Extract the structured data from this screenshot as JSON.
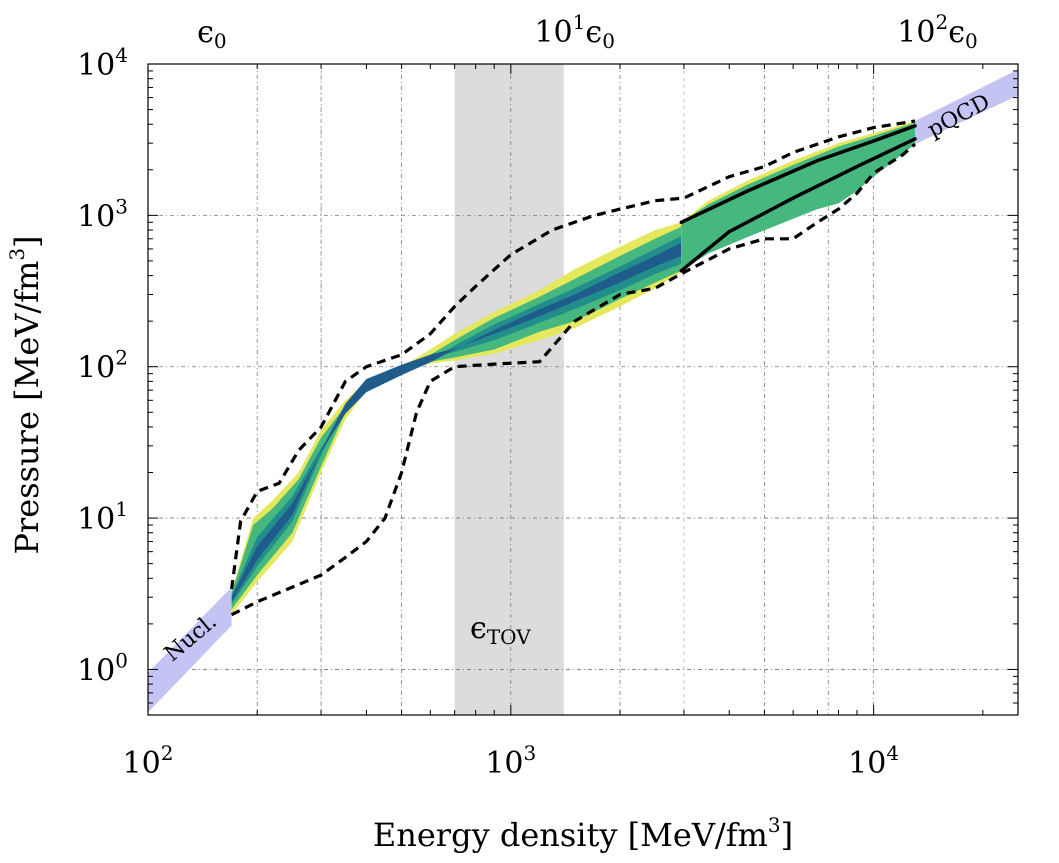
{
  "chart_data": {
    "type": "area",
    "xlabel": {
      "main": "Energy density [MeV/fm",
      "sup": "3",
      "end": "]"
    },
    "ylabel": {
      "main": "Pressure [MeV/fm",
      "sup": "3",
      "end": "]"
    },
    "x_scale": "log",
    "y_scale": "log",
    "xlim": [
      100,
      25000
    ],
    "ylim": [
      0.5,
      10000
    ],
    "grid": true,
    "x_ticks": [
      {
        "value": 100,
        "base": "10",
        "exp": "2"
      },
      {
        "value": 1000,
        "base": "10",
        "exp": "3"
      },
      {
        "value": 10000,
        "base": "10",
        "exp": "4"
      }
    ],
    "y_ticks": [
      {
        "value": 1,
        "base": "10",
        "exp": "0"
      },
      {
        "value": 10,
        "base": "10",
        "exp": "1"
      },
      {
        "value": 100,
        "base": "10",
        "exp": "2"
      },
      {
        "value": 1000,
        "base": "10",
        "exp": "3"
      },
      {
        "value": 10000,
        "base": "10",
        "exp": "4"
      }
    ],
    "top_ticks": [
      {
        "value": 150,
        "prefix": "",
        "exp": "",
        "eps": "ϵ",
        "sub": "0"
      },
      {
        "value": 1500,
        "prefix": "10",
        "exp": "1",
        "eps": "ϵ",
        "sub": "0"
      },
      {
        "value": 15000,
        "prefix": "10",
        "exp": "2",
        "eps": "ϵ",
        "sub": "0"
      }
    ],
    "tov_band": {
      "x_range": [
        700,
        1400
      ],
      "label": {
        "eps": "ϵ",
        "sub": "TOV"
      },
      "color": "#dcdcdc"
    },
    "nucl_band": {
      "label": "Nucl.",
      "color": "#c4c4f4",
      "lower": [
        [
          100,
          0.52
        ],
        [
          170,
          1.95
        ]
      ],
      "upper": [
        [
          100,
          0.95
        ],
        [
          170,
          3.5
        ]
      ]
    },
    "pqcd_band": {
      "label": "pQCD",
      "color": "#c4c4f4",
      "lower": [
        [
          2950,
          430
        ],
        [
          5000,
          1000
        ],
        [
          8000,
          1800
        ],
        [
          13000,
          2950
        ],
        [
          25000,
          6200
        ]
      ],
      "upper": [
        [
          2950,
          900
        ],
        [
          5000,
          1700
        ],
        [
          8000,
          2600
        ],
        [
          13000,
          4200
        ],
        [
          25000,
          9200
        ]
      ]
    },
    "credible_bands": [
      {
        "name": "outer",
        "color": "#e5e75c",
        "lower": [
          [
            170,
            2.3
          ],
          [
            200,
            3.8
          ],
          [
            250,
            7
          ],
          [
            300,
            20
          ],
          [
            350,
            45
          ],
          [
            400,
            70
          ],
          [
            500,
            92
          ],
          [
            600,
            105
          ],
          [
            700,
            110
          ],
          [
            900,
            122
          ],
          [
            1200,
            150
          ],
          [
            1500,
            180
          ],
          [
            2000,
            250
          ],
          [
            2500,
            330
          ],
          [
            2950,
            420
          ]
        ],
        "upper": [
          [
            170,
            3.3
          ],
          [
            195,
            10
          ],
          [
            220,
            13
          ],
          [
            260,
            20
          ],
          [
            300,
            38
          ],
          [
            350,
            60
          ],
          [
            400,
            80
          ],
          [
            500,
            100
          ],
          [
            600,
            130
          ],
          [
            700,
            165
          ],
          [
            900,
            230
          ],
          [
            1200,
            320
          ],
          [
            1500,
            440
          ],
          [
            2000,
            620
          ],
          [
            2500,
            800
          ],
          [
            2950,
            900
          ]
        ]
      },
      {
        "name": "mid",
        "color": "#46b77e",
        "lower": [
          [
            170,
            2.5
          ],
          [
            200,
            4.2
          ],
          [
            250,
            8
          ],
          [
            300,
            22
          ],
          [
            350,
            50
          ],
          [
            400,
            75
          ],
          [
            500,
            95
          ],
          [
            600,
            108
          ],
          [
            700,
            115
          ],
          [
            900,
            130
          ],
          [
            1200,
            170
          ],
          [
            1500,
            200
          ],
          [
            2000,
            280
          ],
          [
            2500,
            360
          ],
          [
            2950,
            430
          ]
        ],
        "upper": [
          [
            170,
            3.2
          ],
          [
            195,
            9
          ],
          [
            220,
            11.5
          ],
          [
            260,
            18
          ],
          [
            300,
            34
          ],
          [
            350,
            55
          ],
          [
            400,
            75
          ],
          [
            500,
            95
          ],
          [
            600,
            120
          ],
          [
            700,
            150
          ],
          [
            900,
            210
          ],
          [
            1200,
            290
          ],
          [
            1500,
            380
          ],
          [
            2000,
            540
          ],
          [
            2500,
            700
          ],
          [
            2950,
            840
          ]
        ]
      },
      {
        "name": "inner",
        "color": "#228e8c",
        "lower": [
          [
            170,
            2.7
          ],
          [
            200,
            4.8
          ],
          [
            250,
            9.5
          ],
          [
            300,
            26
          ],
          [
            350,
            55
          ],
          [
            400,
            80
          ],
          [
            500,
            100
          ],
          [
            600,
            115
          ],
          [
            700,
            125
          ],
          [
            900,
            150
          ],
          [
            1200,
            195
          ],
          [
            1500,
            240
          ],
          [
            2000,
            320
          ],
          [
            2500,
            410
          ],
          [
            2950,
            480
          ]
        ],
        "upper": [
          [
            170,
            3.1
          ],
          [
            200,
            7.5
          ],
          [
            250,
            14
          ],
          [
            300,
            29
          ],
          [
            350,
            50
          ],
          [
            400,
            70
          ],
          [
            500,
            90
          ],
          [
            600,
            110
          ],
          [
            700,
            138
          ],
          [
            900,
            190
          ],
          [
            1200,
            260
          ],
          [
            1500,
            330
          ],
          [
            2000,
            460
          ],
          [
            2500,
            600
          ],
          [
            2950,
            730
          ]
        ]
      },
      {
        "name": "core",
        "color": "#1f5b8b",
        "lower": [
          [
            170,
            2.8
          ],
          [
            200,
            5.3
          ],
          [
            250,
            10.5
          ],
          [
            300,
            28
          ],
          [
            350,
            57
          ],
          [
            400,
            83
          ],
          [
            500,
            103
          ],
          [
            600,
            120
          ],
          [
            700,
            132
          ],
          [
            900,
            165
          ],
          [
            1200,
            215
          ],
          [
            1500,
            270
          ],
          [
            2000,
            360
          ],
          [
            2500,
            460
          ],
          [
            2950,
            540
          ]
        ],
        "upper": [
          [
            170,
            3.0
          ],
          [
            200,
            6.5
          ],
          [
            250,
            12.5
          ],
          [
            300,
            27.5
          ],
          [
            350,
            49
          ],
          [
            400,
            68
          ],
          [
            500,
            88
          ],
          [
            600,
            107
          ],
          [
            700,
            130
          ],
          [
            900,
            175
          ],
          [
            1200,
            240
          ],
          [
            1500,
            300
          ],
          [
            2000,
            420
          ],
          [
            2500,
            540
          ],
          [
            2950,
            660
          ]
        ]
      }
    ],
    "high_density_bands": [
      {
        "name": "outer",
        "color": "#e5e75c",
        "lower": [
          [
            2950,
            430
          ],
          [
            3500,
            600
          ],
          [
            4500,
            800
          ],
          [
            6000,
            1100
          ],
          [
            8000,
            1600
          ],
          [
            10000,
            2200
          ],
          [
            13000,
            2950
          ]
        ],
        "upper": [
          [
            2950,
            900
          ],
          [
            3500,
            1250
          ],
          [
            4500,
            1700
          ],
          [
            6000,
            2300
          ],
          [
            8000,
            3000
          ],
          [
            10000,
            3500
          ],
          [
            13000,
            4200
          ]
        ]
      },
      {
        "name": "mid",
        "color": "#46b77e",
        "lower": [
          [
            2950,
            430
          ],
          [
            3500,
            560
          ],
          [
            4500,
            720
          ],
          [
            6000,
            950
          ],
          [
            7000,
            1100
          ],
          [
            8000,
            1200
          ],
          [
            9000,
            1450
          ],
          [
            10000,
            1800
          ],
          [
            13000,
            2950
          ]
        ],
        "upper": [
          [
            2950,
            900
          ],
          [
            3500,
            1180
          ],
          [
            4500,
            1600
          ],
          [
            6000,
            2150
          ],
          [
            8000,
            2850
          ],
          [
            10000,
            3350
          ],
          [
            13000,
            4100
          ]
        ]
      }
    ],
    "solid_bounds": [
      {
        "name": "soft",
        "color": "#000000",
        "points": [
          [
            2950,
            430
          ],
          [
            4000,
            780
          ],
          [
            6000,
            1300
          ],
          [
            9000,
            2100
          ],
          [
            13000,
            3200
          ]
        ]
      },
      {
        "name": "stiff",
        "color": "#000000",
        "points": [
          [
            2950,
            900
          ],
          [
            4500,
            1450
          ],
          [
            7000,
            2300
          ],
          [
            10000,
            3100
          ],
          [
            13000,
            3900
          ]
        ]
      }
    ],
    "dashed_envelope": {
      "color": "#000000",
      "upper": [
        [
          170,
          3.4
        ],
        [
          180,
          9.5
        ],
        [
          200,
          15
        ],
        [
          230,
          17
        ],
        [
          260,
          28
        ],
        [
          300,
          40
        ],
        [
          350,
          80
        ],
        [
          400,
          100
        ],
        [
          500,
          120
        ],
        [
          600,
          165
        ],
        [
          700,
          250
        ],
        [
          800,
          340
        ],
        [
          1000,
          550
        ],
        [
          1300,
          800
        ],
        [
          1700,
          1000
        ],
        [
          2000,
          1100
        ],
        [
          2500,
          1250
        ],
        [
          3000,
          1300
        ],
        [
          4000,
          1800
        ],
        [
          5000,
          2100
        ],
        [
          6000,
          2600
        ],
        [
          8000,
          3300
        ],
        [
          10000,
          3800
        ],
        [
          13000,
          4200
        ]
      ],
      "lower": [
        [
          170,
          2.3
        ],
        [
          200,
          2.8
        ],
        [
          250,
          3.5
        ],
        [
          300,
          4.2
        ],
        [
          350,
          5.5
        ],
        [
          400,
          7
        ],
        [
          450,
          10
        ],
        [
          500,
          20
        ],
        [
          550,
          50
        ],
        [
          600,
          80
        ],
        [
          700,
          100
        ],
        [
          900,
          104
        ],
        [
          1200,
          108
        ],
        [
          1500,
          200
        ],
        [
          2000,
          300
        ],
        [
          2500,
          330
        ],
        [
          3000,
          420
        ],
        [
          4000,
          600
        ],
        [
          5000,
          700
        ],
        [
          6000,
          700
        ],
        [
          7000,
          900
        ],
        [
          8000,
          1100
        ],
        [
          9000,
          1400
        ],
        [
          10000,
          1900
        ],
        [
          12000,
          2500
        ],
        [
          13000,
          2950
        ]
      ]
    }
  }
}
